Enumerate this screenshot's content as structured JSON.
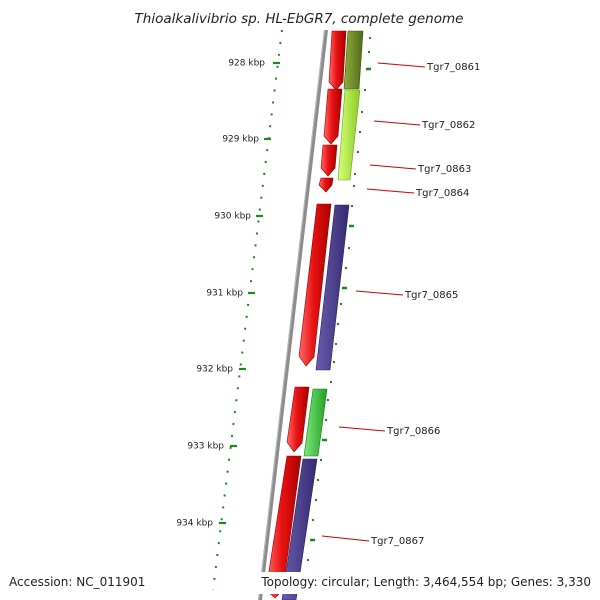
{
  "title": "Thioalkalivibrio sp. HL-EbGR7, complete genome",
  "footer": {
    "accession": "Accession: NC_011901",
    "summary": "Topology: circular; Length: 3,464,554 bp; Genes: 3,330"
  },
  "ruler": [
    {
      "label": "928 kbp"
    },
    {
      "label": "929 kbp"
    },
    {
      "label": "930 kbp"
    },
    {
      "label": "931 kbp"
    },
    {
      "label": "932 kbp"
    },
    {
      "label": "933 kbp"
    },
    {
      "label": "934 kbp"
    }
  ],
  "genes": [
    {
      "label": "Tgr7_0861",
      "strand": "+",
      "color": "#6b8a24"
    },
    {
      "label": "Tgr7_0862",
      "strand": "+",
      "color": "#a6e83a"
    },
    {
      "label": "Tgr7_0863",
      "strand": "-",
      "color": "#e01010"
    },
    {
      "label": "Tgr7_0864",
      "strand": "-",
      "color": "#e01010"
    },
    {
      "label": "Tgr7_0865",
      "strand": "+",
      "color": "#4a3d8c"
    },
    {
      "label": "Tgr7_0866",
      "strand": "+",
      "color": "#3ec43e"
    },
    {
      "label": "Tgr7_0867",
      "strand": "+",
      "color": "#4a3d8c"
    }
  ],
  "colors": {
    "cds_red": "#e01010",
    "ruler_green": "#1a8a1a",
    "label_red": "#cc0000",
    "backbone_gray": "#8c8c8c"
  }
}
